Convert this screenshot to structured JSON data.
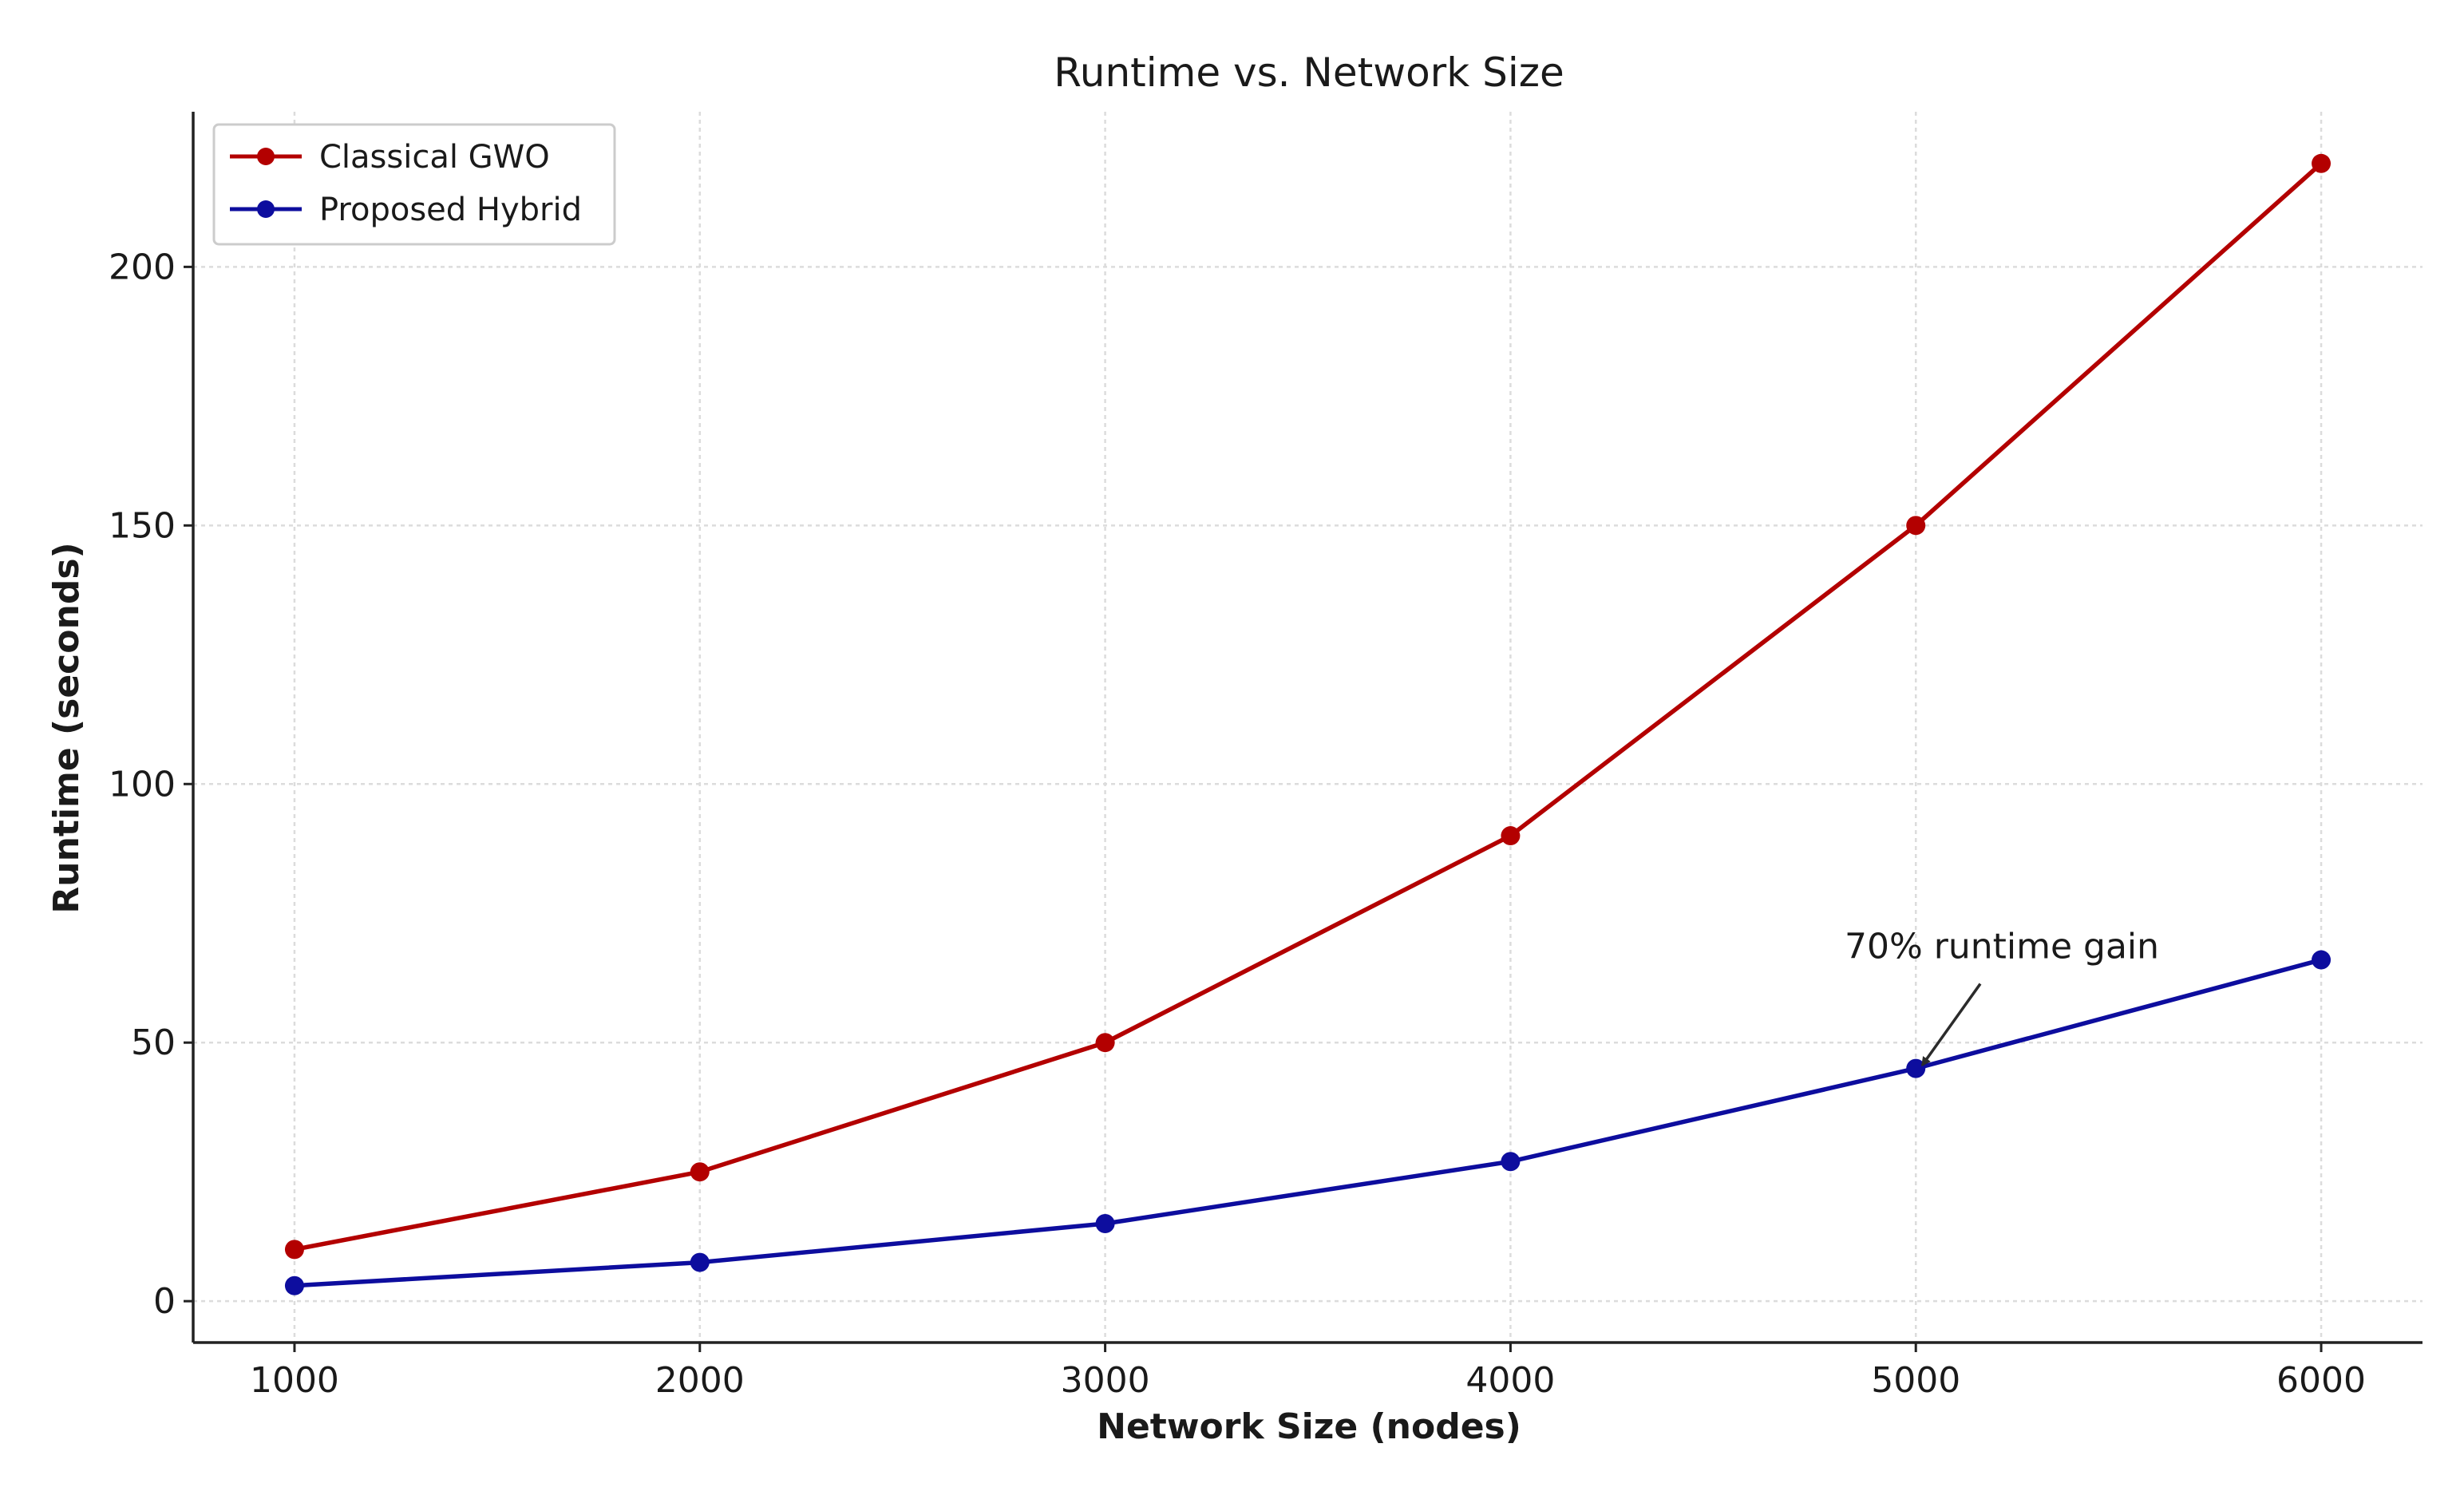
{
  "chart_data": {
    "type": "line",
    "title": "Runtime vs. Network Size",
    "xlabel": "Network Size (nodes)",
    "ylabel": "Runtime (seconds)",
    "x": [
      1000,
      2000,
      3000,
      4000,
      5000,
      6000
    ],
    "x_ticks": [
      "1000",
      "2000",
      "3000",
      "4000",
      "5000",
      "6000"
    ],
    "y_ticks": [
      "0",
      "50",
      "100",
      "150",
      "200"
    ],
    "xlim": [
      750,
      6250
    ],
    "ylim": [
      -8,
      230
    ],
    "grid": true,
    "legend_position": "top-left",
    "series": [
      {
        "name": "Classical GWO",
        "color": "#b30000",
        "values": [
          10,
          25,
          50,
          90,
          150,
          220
        ]
      },
      {
        "name": "Proposed Hybrid",
        "color": "#0d0d9e",
        "values": [
          3,
          7.5,
          15,
          27,
          45,
          66
        ]
      }
    ],
    "annotations": [
      {
        "text": "70% runtime gain",
        "point": [
          5000,
          45
        ],
        "text_anchor": [
          5100,
          66
        ]
      }
    ]
  }
}
